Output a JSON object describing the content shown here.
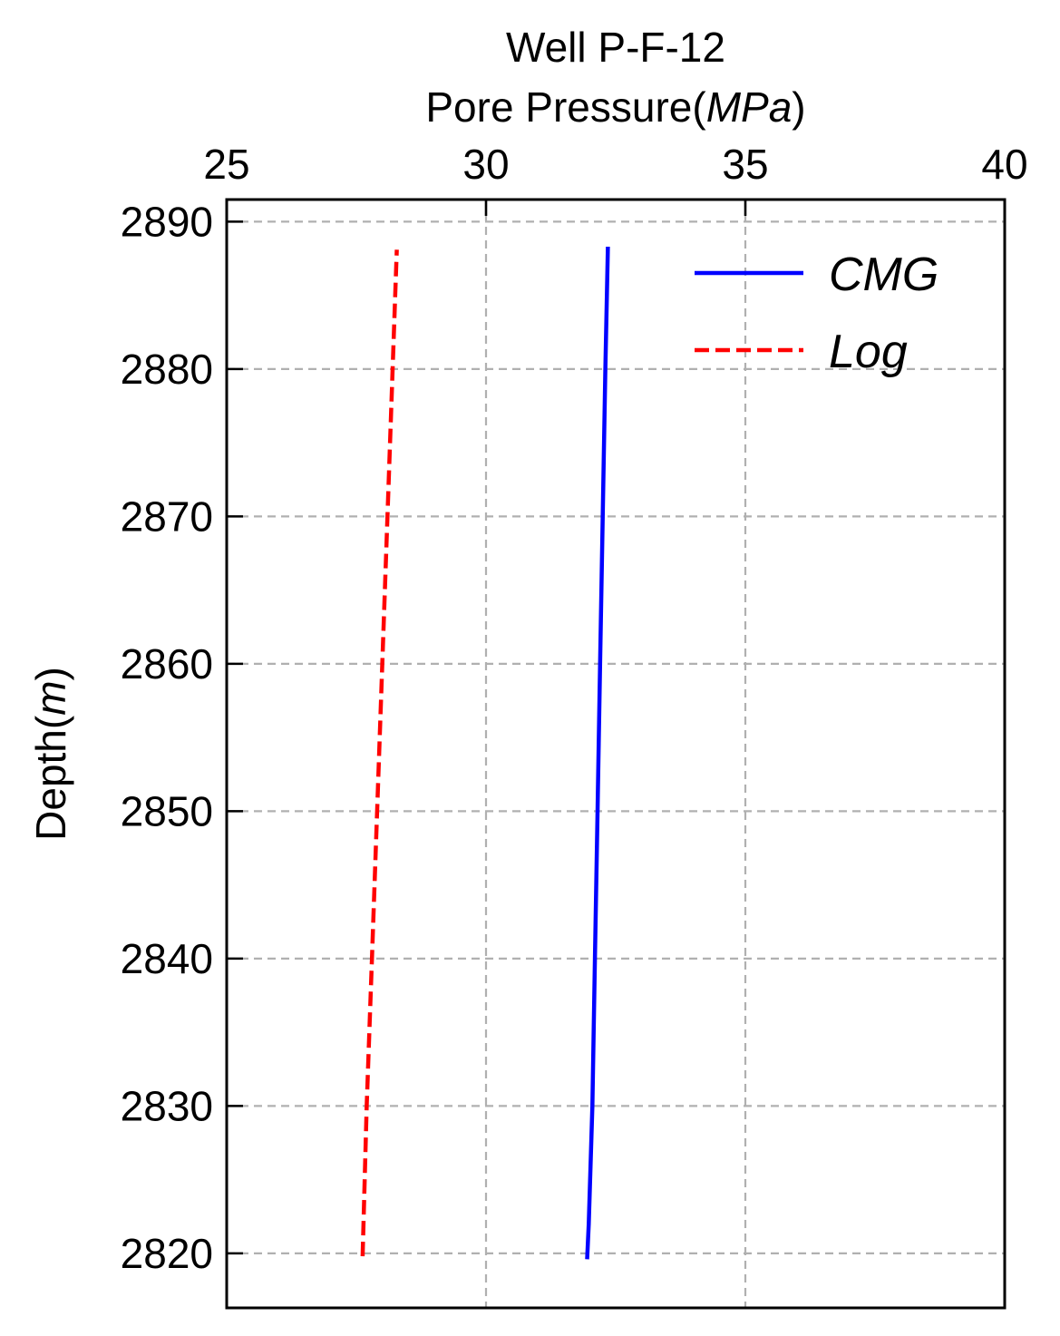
{
  "chart_data": {
    "type": "line",
    "title": "Well P-F-12",
    "xlabel": "Pore Pressure(MPa)",
    "xlabel_parts": {
      "pre": "Pore Pressure(",
      "unit": "MPa",
      "post": ")"
    },
    "ylabel": "Depth(m)",
    "ylabel_parts": {
      "pre": "Depth(",
      "unit": "m",
      "post": ")"
    },
    "xlim": [
      25,
      40
    ],
    "ylim": [
      2816.3,
      2891.5
    ],
    "y_inverted": true,
    "x_axis_position": "top",
    "x_ticks": [
      25,
      30,
      35,
      40
    ],
    "y_ticks": [
      2820,
      2830,
      2840,
      2850,
      2860,
      2870,
      2880,
      2890
    ],
    "grid": true,
    "legend_position": "top-right",
    "series": [
      {
        "name": "CMG",
        "color": "#0000ff",
        "style": "solid",
        "points": [
          {
            "x": 31.95,
            "y": 2819.6
          },
          {
            "x": 31.98,
            "y": 2822.0
          },
          {
            "x": 32.05,
            "y": 2830.0
          },
          {
            "x": 32.1,
            "y": 2840.0
          },
          {
            "x": 32.15,
            "y": 2850.0
          },
          {
            "x": 32.2,
            "y": 2860.0
          },
          {
            "x": 32.25,
            "y": 2870.0
          },
          {
            "x": 32.3,
            "y": 2880.0
          },
          {
            "x": 32.35,
            "y": 2888.3
          }
        ]
      },
      {
        "name": "Log",
        "color": "#ff0000",
        "style": "dashed",
        "points": [
          {
            "x": 27.62,
            "y": 2819.8
          },
          {
            "x": 27.7,
            "y": 2830.0
          },
          {
            "x": 27.8,
            "y": 2840.0
          },
          {
            "x": 27.9,
            "y": 2850.0
          },
          {
            "x": 28.0,
            "y": 2860.0
          },
          {
            "x": 28.1,
            "y": 2870.0
          },
          {
            "x": 28.2,
            "y": 2880.0
          },
          {
            "x": 28.28,
            "y": 2888.1
          }
        ]
      }
    ]
  }
}
